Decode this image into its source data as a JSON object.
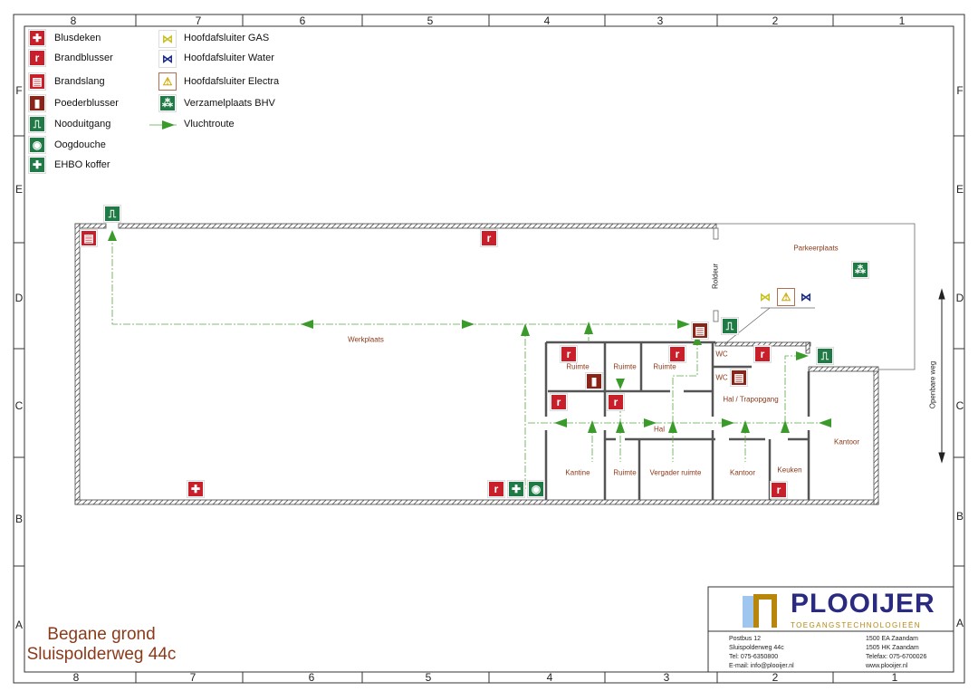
{
  "grid": {
    "columns": [
      "8",
      "7",
      "6",
      "5",
      "4",
      "3",
      "2",
      "1"
    ],
    "rows": [
      "F",
      "E",
      "D",
      "C",
      "B",
      "A"
    ]
  },
  "legend": {
    "items": [
      {
        "label": "Blusdeken",
        "icon": "fire-blanket-icon",
        "color": "#c8202a"
      },
      {
        "label": "Brandblusser",
        "icon": "fire-extinguisher-icon",
        "color": "#c8202a"
      },
      {
        "label": "Brandslang",
        "icon": "fire-hose-icon",
        "color": "#c8202a"
      },
      {
        "label": "Poederblusser",
        "icon": "powder-extinguisher-icon",
        "color": "#8b2418"
      },
      {
        "label": "Nooduitgang",
        "icon": "emergency-exit-icon",
        "color": "#1f7a45"
      },
      {
        "label": "Oogdouche",
        "icon": "eye-shower-icon",
        "color": "#1f7a45"
      },
      {
        "label": "EHBO koffer",
        "icon": "first-aid-icon",
        "color": "#1f7a45"
      },
      {
        "label": "Hoofdafsluiter GAS",
        "icon": "gas-valve-icon",
        "color": "#e8e23a"
      },
      {
        "label": "Hoofdafsluiter Water",
        "icon": "water-valve-icon",
        "color": "#1a2a8a"
      },
      {
        "label": "Hoofdafsluiter Electra",
        "icon": "electric-warning-icon",
        "color": "#f2d600"
      },
      {
        "label": "Verzamelplaats BHV",
        "icon": "assembly-point-icon",
        "color": "#1f7a45"
      },
      {
        "label": "Vluchtroute",
        "icon": "escape-route-arrow-icon",
        "color": "#3a9a2a"
      }
    ]
  },
  "rooms": {
    "werkplaats": "Werkplaats",
    "parkeerplaats": "Parkeerplaats",
    "roldeur": "Roldeur",
    "ruimte1": "Ruimte",
    "ruimte2": "Ruimte",
    "ruimte3": "Ruimte",
    "wc1": "WC",
    "wc2": "WC",
    "hal_trap": "Hal / Trapopgang",
    "hal": "Hal",
    "kantoor1": "Kantoor",
    "kantine": "Kantine",
    "ruimte4": "Ruimte",
    "vergader": "Vergader ruimte",
    "kantoor2": "Kantoor",
    "keuken": "Keuken",
    "openbare_weg": "Openbare weg"
  },
  "title": {
    "line1": "Begane grond",
    "line2": "Sluispolderweg 44c"
  },
  "title_block": {
    "company": "PLOOIJER",
    "tagline": "TOEGANGSTECHNOLOGIEËN",
    "left": [
      "Postbus 12",
      "Sluispolderweg 44c",
      "Tel: 075-6350800",
      "E-mail: info@plooijer.nl"
    ],
    "right": [
      "1500 EA Zaandam",
      "1505 HK Zaandam",
      "Telefax: 075-6700026",
      "www.plooijer.nl"
    ],
    "brand_color": "#2a2a80",
    "accent_color": "#b8860b"
  }
}
